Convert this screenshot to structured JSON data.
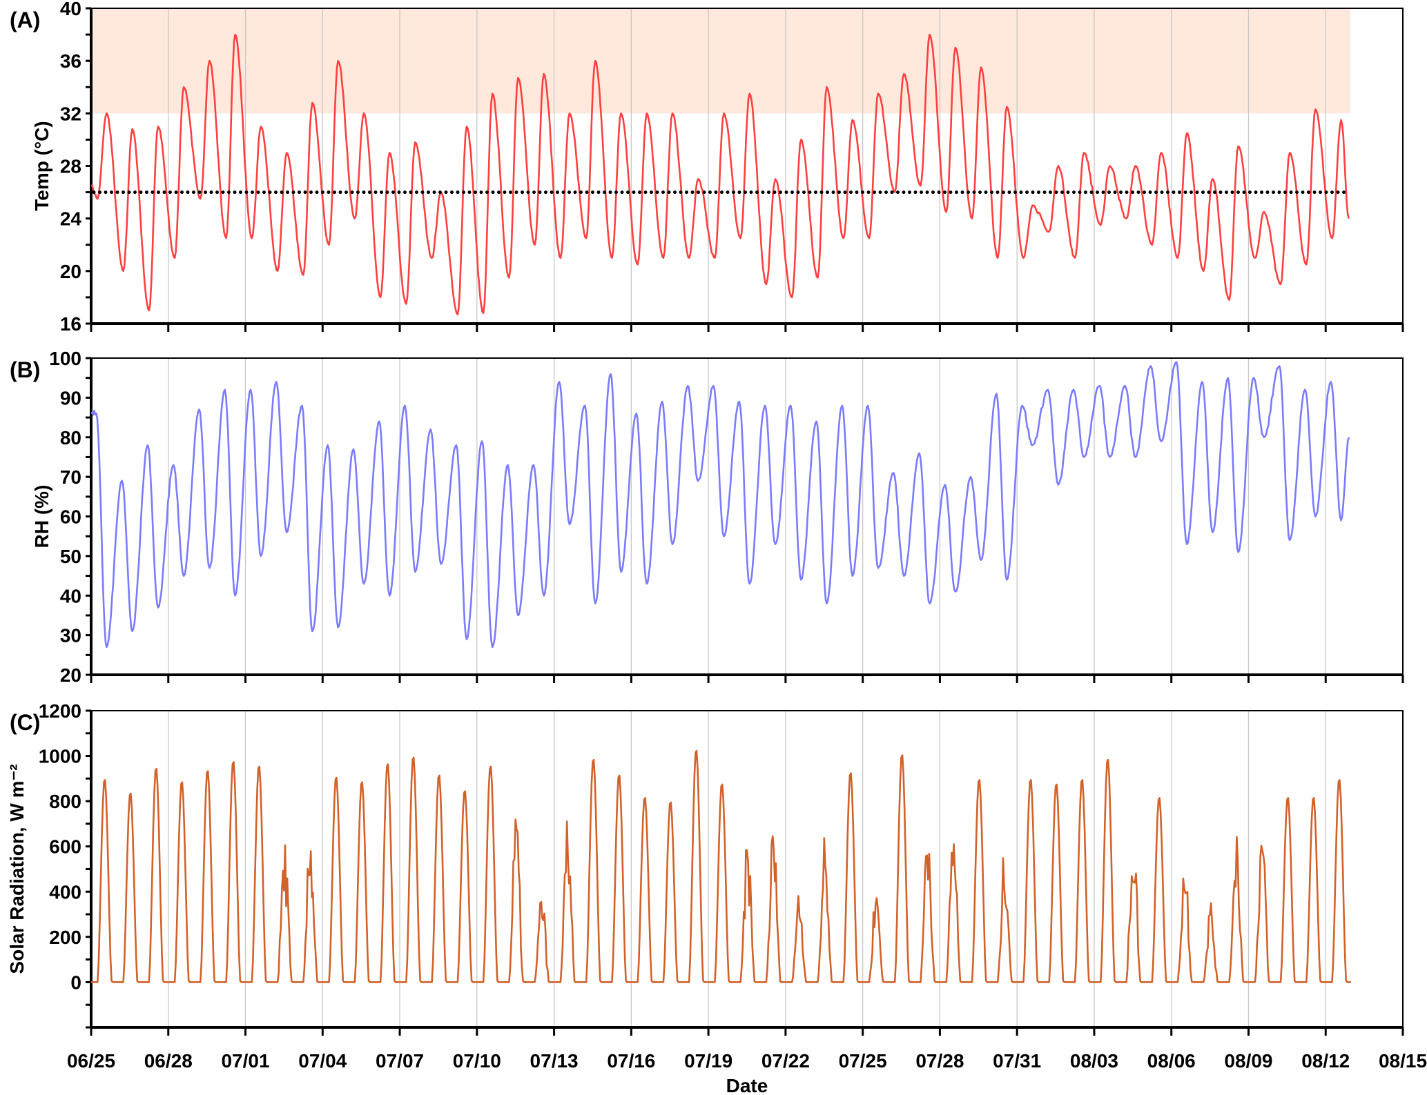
{
  "x_axis": {
    "label": "Date",
    "tick_labels": [
      "06/25",
      "06/28",
      "07/01",
      "07/04",
      "07/07",
      "07/10",
      "07/13",
      "07/16",
      "07/19",
      "07/22",
      "07/25",
      "07/28",
      "07/31",
      "08/03",
      "08/06",
      "08/09",
      "08/12",
      "08/15"
    ],
    "range": [
      "06/25",
      "08/15"
    ],
    "gridlines": true
  },
  "chart_data": [
    {
      "type": "line",
      "panel_label": "(A)",
      "ylabel": "Temp (°C)",
      "ylim": [
        16,
        40
      ],
      "yticks": [
        "16",
        "20",
        "24",
        "28",
        "32",
        "36",
        "40"
      ],
      "line_color": "#ff4040",
      "reference_line": {
        "value": 26,
        "style": "dotted",
        "color": "#000000"
      },
      "shaded_band": {
        "from": 32,
        "to": 40,
        "color": "#ffe8dc"
      },
      "series_start_value": 26.5,
      "series_end": {
        "date": "08/13",
        "value": 24
      },
      "daily_min": [
        25.5,
        20,
        17,
        21,
        25.5,
        22.5,
        22.5,
        20,
        19.7,
        22,
        24,
        18,
        17.5,
        21,
        16.7,
        16.8,
        19.5,
        22,
        21,
        22.5,
        21,
        20.5,
        21,
        21,
        21,
        22.5,
        19,
        18,
        19.5,
        22.5,
        22.5,
        26,
        26.5,
        24.5,
        24,
        21,
        21,
        23,
        21,
        23.5,
        24,
        22,
        21,
        20,
        17.8,
        21,
        19,
        20.5,
        22.5
      ],
      "daily_max": [
        32,
        30.8,
        31,
        34,
        36,
        38,
        31,
        29,
        32.8,
        36,
        32,
        29,
        29.8,
        26,
        31,
        33.5,
        34.7,
        35,
        32,
        36,
        32,
        32,
        32,
        27,
        32,
        33.5,
        27,
        30,
        34,
        31.5,
        33.5,
        35,
        38,
        37,
        35.5,
        32.5,
        25,
        28,
        29,
        28,
        28,
        29,
        30.5,
        27,
        29.5,
        24.5,
        29,
        32.3,
        31.5
      ]
    },
    {
      "type": "line",
      "panel_label": "(B)",
      "ylabel": "RH (%)",
      "ylim": [
        20,
        100
      ],
      "yticks": [
        "20",
        "30",
        "40",
        "50",
        "60",
        "70",
        "80",
        "90",
        "100"
      ],
      "line_color": "#7b7bff",
      "series_start_value": 86,
      "series_end": {
        "date": "08/13",
        "value": 80
      },
      "daily_max": [
        86,
        69,
        78,
        73,
        87,
        92,
        92,
        94,
        88,
        78,
        77,
        84,
        88,
        82,
        78,
        79,
        73,
        73,
        94,
        88,
        96,
        86,
        89,
        93,
        93,
        89,
        88,
        88,
        84,
        88,
        88,
        71,
        76,
        68,
        70,
        91,
        88,
        92,
        92,
        93,
        93,
        98,
        99,
        94,
        95,
        95,
        98,
        92,
        94
      ],
      "daily_min": [
        27,
        31,
        37,
        45,
        47,
        40,
        50,
        56,
        31,
        32,
        43,
        40,
        46,
        48,
        29,
        27,
        35,
        40,
        58,
        38,
        46,
        43,
        53,
        69,
        55,
        43,
        53,
        44,
        38,
        45,
        47,
        45,
        38,
        41,
        49,
        44,
        78,
        68,
        75,
        75,
        75,
        79,
        53,
        56,
        51,
        80,
        54,
        60,
        59
      ]
    },
    {
      "type": "line",
      "panel_label": "(C)",
      "ylabel": "Solar Radiation, W m⁻²",
      "ylim": [
        -200,
        1200
      ],
      "yticks": [
        "0",
        "200",
        "400",
        "600",
        "800",
        "1000",
        "1200"
      ],
      "line_color": "#d2622a",
      "daily_peak": [
        900,
        840,
        950,
        890,
        940,
        980,
        960,
        650,
        700,
        910,
        890,
        970,
        1000,
        920,
        850,
        960,
        780,
        420,
        770,
        990,
        920,
        820,
        800,
        1030,
        880,
        660,
        730,
        420,
        650,
        930,
        450,
        1010,
        780,
        760,
        900,
        620,
        900,
        880,
        900,
        990,
        720,
        820,
        590,
        370,
        730,
        740,
        820,
        820,
        900
      ]
    }
  ]
}
